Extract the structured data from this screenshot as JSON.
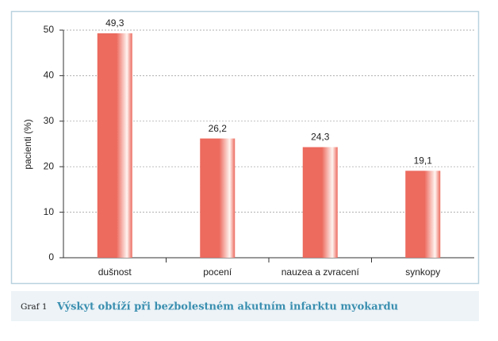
{
  "chart_data": {
    "type": "bar",
    "title": "Výskyt obtíží při bezbolestném akutním infarktu myokardu",
    "caption_label": "Graf 1",
    "ylabel": "pacienti (%)",
    "categories": [
      "dušnost",
      "pocení",
      "nauzea a zvracení",
      "synkopy"
    ],
    "values": [
      49.3,
      26.2,
      24.3,
      19.1
    ],
    "value_labels": [
      "49,3",
      "26,2",
      "24,3",
      "19,1"
    ],
    "color": "#ec6a5e",
    "ylim": [
      0,
      50
    ],
    "yticks": [
      0,
      10,
      20,
      30,
      40,
      50
    ],
    "grid": true
  }
}
